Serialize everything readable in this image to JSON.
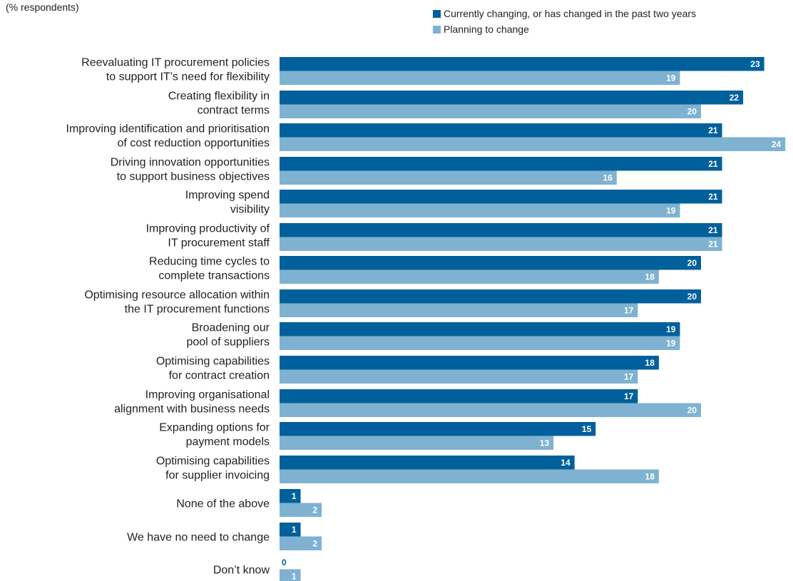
{
  "chart_data": {
    "type": "bar",
    "orientation": "horizontal",
    "subtitle": "(% respondents)",
    "categories": [
      [
        "Reevaluating IT procurement policies",
        "to support IT’s need for flexibility"
      ],
      [
        "Creating flexibility in",
        "contract terms"
      ],
      [
        "Improving identification and prioritisation",
        "of cost reduction opportunities"
      ],
      [
        "Driving innovation opportunities",
        "to support business objectives"
      ],
      [
        "Improving spend",
        "visibility"
      ],
      [
        "Improving productivity of",
        "IT procurement staff"
      ],
      [
        "Reducing time cycles to",
        "complete transactions"
      ],
      [
        "Optimising resource allocation within",
        "the IT procurement functions"
      ],
      [
        "Broadening our",
        "pool of suppliers"
      ],
      [
        "Optimising capabilities",
        "for contract creation"
      ],
      [
        "Improving organisational",
        "alignment with business needs"
      ],
      [
        "Expanding options for",
        "payment models"
      ],
      [
        "Optimising capabilities",
        "for supplier invoicing"
      ],
      [
        "None of the above"
      ],
      [
        "We have no need to change"
      ],
      [
        "Don’t know"
      ]
    ],
    "series": [
      {
        "name": "Currently changing, or has changed in the past two years",
        "color": "#00609c",
        "values": [
          23,
          22,
          21,
          21,
          21,
          21,
          20,
          20,
          19,
          18,
          17,
          15,
          14,
          1,
          1,
          0
        ]
      },
      {
        "name": "Planning to change",
        "color": "#7fb2d0",
        "values": [
          19,
          20,
          24,
          16,
          19,
          21,
          18,
          17,
          19,
          17,
          20,
          13,
          18,
          2,
          2,
          1
        ]
      }
    ],
    "xlim": [
      0,
      24
    ],
    "legend_position": "top-right",
    "grid": false
  }
}
